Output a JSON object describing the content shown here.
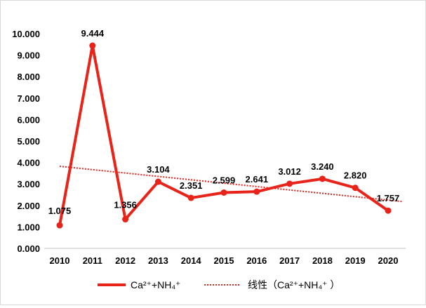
{
  "chart_data": {
    "type": "line",
    "categories": [
      "2010",
      "2011",
      "2012",
      "2013",
      "2014",
      "2015",
      "2016",
      "2017",
      "2018",
      "2019",
      "2020"
    ],
    "series": [
      {
        "name": "Ca²⁺+NH₄⁺",
        "values": [
          1.075,
          9.444,
          1.356,
          3.104,
          2.351,
          2.599,
          2.641,
          3.012,
          3.24,
          2.82,
          1.757
        ],
        "labels": [
          "1.075",
          "9.444",
          "1.356",
          "3.104",
          "2.351",
          "2.599",
          "2.641",
          "3.012",
          "3.240",
          "2.820",
          "1.757"
        ],
        "color": "#e8231a"
      }
    ],
    "trendline": {
      "name": "线性（Ca²⁺+NH₄⁺ ）",
      "type": "linear",
      "color": "#e8231a"
    },
    "ylim": [
      0,
      10
    ],
    "yticks": [
      "0.000",
      "1.000",
      "2.000",
      "3.000",
      "4.000",
      "5.000",
      "6.000",
      "7.000",
      "8.000",
      "9.000",
      "10.000"
    ],
    "grid": false,
    "legend": "bottom"
  }
}
